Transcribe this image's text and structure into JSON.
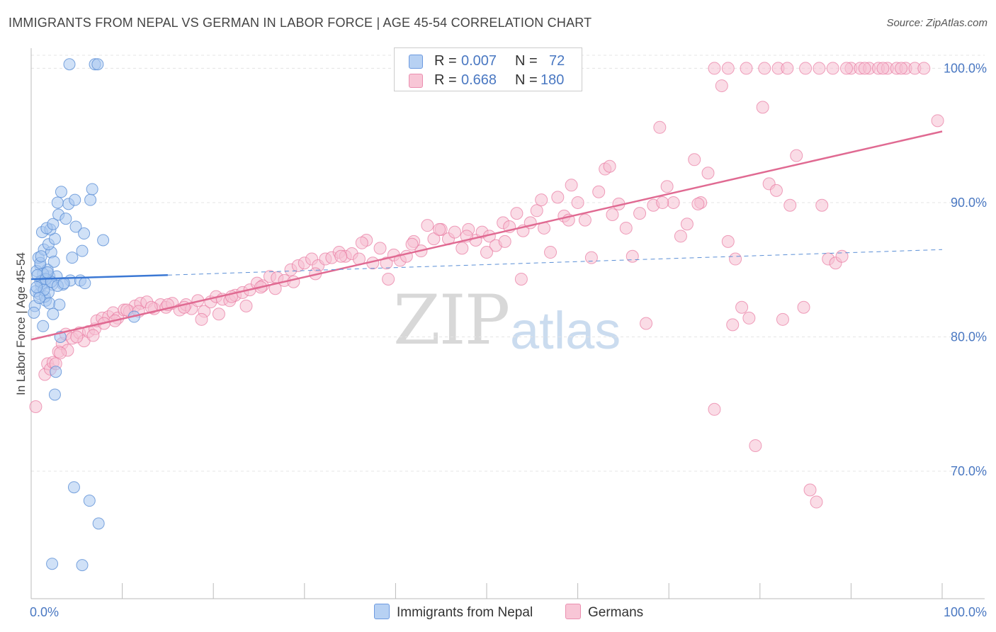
{
  "title": "IMMIGRANTS FROM NEPAL VS GERMAN IN LABOR FORCE | AGE 45-54 CORRELATION CHART",
  "source": "Source: ZipAtlas.com",
  "watermark": {
    "zip": "ZIP",
    "atlas": "atlas"
  },
  "legend": {
    "rows": [
      {
        "r_label": "R =",
        "r_value": "0.007",
        "n_label": "N =",
        "n_value": "72"
      },
      {
        "r_label": "R =",
        "r_value": "0.668",
        "n_label": "N =",
        "n_value": "180"
      }
    ]
  },
  "bottom_legend": {
    "nepal": "Immigrants from Nepal",
    "germans": "Germans"
  },
  "colors": {
    "nepal": "#5b8fd6",
    "nepal_fill": "#a9c8f0",
    "germans": "#e8789f",
    "germans_fill": "#f6bfd1",
    "tick": "#4a78c2"
  },
  "chart_data": {
    "type": "scatter",
    "title": "IMMIGRANTS FROM NEPAL VS GERMAN IN LABOR FORCE | AGE 45-54 CORRELATION CHART",
    "xlabel": "",
    "ylabel": "In Labor Force | Age 45-54",
    "xlim": [
      0,
      100
    ],
    "ylim": [
      60.5,
      101.5
    ],
    "x_tick_labels": [
      "0.0%",
      "100.0%"
    ],
    "y_ticks": [
      70,
      80,
      90,
      100
    ],
    "y_tick_labels": [
      "70.0%",
      "80.0%",
      "90.0%",
      "100.0%"
    ],
    "grid": true,
    "legend_placement": "top-center",
    "series": [
      {
        "name": "Immigrants from Nepal",
        "R": 0.007,
        "N": 72,
        "trend": {
          "x": [
            0,
            15
          ],
          "y": [
            84.3,
            84.6
          ],
          "dashed_to": [
            100,
            86.5
          ]
        },
        "points": [
          [
            4.2,
            100.3
          ],
          [
            7.0,
            100.3
          ],
          [
            7.3,
            100.3
          ],
          [
            1.2,
            84.2
          ],
          [
            1.5,
            84.0
          ],
          [
            2.0,
            84.5
          ],
          [
            1.0,
            85.3
          ],
          [
            1.8,
            85.0
          ],
          [
            0.9,
            83.2
          ],
          [
            2.3,
            83.9
          ],
          [
            1.1,
            83.8
          ],
          [
            1.6,
            82.7
          ],
          [
            1.3,
            84.7
          ],
          [
            0.6,
            84.9
          ],
          [
            0.8,
            85.9
          ],
          [
            1.4,
            86.5
          ],
          [
            2.2,
            86.3
          ],
          [
            1.9,
            86.9
          ],
          [
            2.6,
            87.3
          ],
          [
            1.2,
            87.8
          ],
          [
            2.1,
            88.0
          ],
          [
            1.7,
            88.1
          ],
          [
            2.4,
            88.4
          ],
          [
            3.0,
            89.1
          ],
          [
            4.1,
            89.9
          ],
          [
            2.9,
            90.0
          ],
          [
            4.8,
            90.2
          ],
          [
            6.5,
            90.2
          ],
          [
            3.3,
            90.8
          ],
          [
            6.7,
            91.0
          ],
          [
            3.8,
            88.8
          ],
          [
            4.9,
            88.2
          ],
          [
            5.8,
            87.7
          ],
          [
            7.9,
            87.2
          ],
          [
            5.6,
            86.4
          ],
          [
            4.5,
            85.9
          ],
          [
            1.0,
            85.5
          ],
          [
            2.5,
            85.6
          ],
          [
            4.3,
            84.2
          ],
          [
            5.4,
            84.2
          ],
          [
            5.9,
            84.0
          ],
          [
            3.5,
            83.9
          ],
          [
            2.8,
            84.5
          ],
          [
            1.5,
            83.0
          ],
          [
            1.9,
            83.3
          ],
          [
            0.5,
            83.4
          ],
          [
            2.0,
            82.5
          ],
          [
            3.1,
            82.4
          ],
          [
            0.4,
            82.3
          ],
          [
            0.3,
            81.8
          ],
          [
            2.4,
            81.7
          ],
          [
            1.3,
            80.8
          ],
          [
            11.3,
            81.5
          ],
          [
            3.2,
            80.0
          ],
          [
            2.7,
            77.4
          ],
          [
            2.6,
            75.7
          ],
          [
            4.7,
            68.8
          ],
          [
            6.4,
            67.8
          ],
          [
            7.4,
            66.1
          ],
          [
            2.3,
            63.1
          ],
          [
            5.6,
            63.0
          ],
          [
            1.0,
            84.1
          ],
          [
            0.7,
            84.6
          ],
          [
            1.6,
            84.3
          ],
          [
            2.2,
            84.1
          ],
          [
            1.4,
            83.5
          ],
          [
            0.9,
            82.9
          ],
          [
            1.8,
            84.8
          ],
          [
            2.9,
            83.8
          ],
          [
            3.6,
            84.0
          ],
          [
            1.1,
            86.0
          ],
          [
            0.6,
            83.7
          ]
        ]
      },
      {
        "name": "Germans",
        "R": 0.668,
        "N": 180,
        "trend": {
          "x": [
            0,
            100
          ],
          "y": [
            79.8,
            95.3
          ]
        },
        "points": [
          [
            0.5,
            74.8
          ],
          [
            1.5,
            77.2
          ],
          [
            1.8,
            78.0
          ],
          [
            2.1,
            77.6
          ],
          [
            2.4,
            78.1
          ],
          [
            3.0,
            78.9
          ],
          [
            3.4,
            79.5
          ],
          [
            3.8,
            80.2
          ],
          [
            4.5,
            79.9
          ],
          [
            5.3,
            80.3
          ],
          [
            5.8,
            79.7
          ],
          [
            6.3,
            80.4
          ],
          [
            7.0,
            80.6
          ],
          [
            7.2,
            81.2
          ],
          [
            7.8,
            81.4
          ],
          [
            8.5,
            81.5
          ],
          [
            9.0,
            81.8
          ],
          [
            9.5,
            81.4
          ],
          [
            10.2,
            82.0
          ],
          [
            10.8,
            81.9
          ],
          [
            11.4,
            82.3
          ],
          [
            12.0,
            82.5
          ],
          [
            12.7,
            82.6
          ],
          [
            13.5,
            82.1
          ],
          [
            14.2,
            82.4
          ],
          [
            14.8,
            82.2
          ],
          [
            15.5,
            82.5
          ],
          [
            16.3,
            82.0
          ],
          [
            17.0,
            82.4
          ],
          [
            17.6,
            82.1
          ],
          [
            18.3,
            82.7
          ],
          [
            19.0,
            81.9
          ],
          [
            19.7,
            82.6
          ],
          [
            20.3,
            83.0
          ],
          [
            21.0,
            82.8
          ],
          [
            21.8,
            82.7
          ],
          [
            22.4,
            83.1
          ],
          [
            23.2,
            83.3
          ],
          [
            24.0,
            83.5
          ],
          [
            24.8,
            84.0
          ],
          [
            25.4,
            83.8
          ],
          [
            26.2,
            84.5
          ],
          [
            27.0,
            84.4
          ],
          [
            27.8,
            84.2
          ],
          [
            28.5,
            85.0
          ],
          [
            29.3,
            85.3
          ],
          [
            30.0,
            85.5
          ],
          [
            30.8,
            85.8
          ],
          [
            31.5,
            85.3
          ],
          [
            32.3,
            85.8
          ],
          [
            33.0,
            85.9
          ],
          [
            33.8,
            86.3
          ],
          [
            34.5,
            86.0
          ],
          [
            35.2,
            86.2
          ],
          [
            36.0,
            85.8
          ],
          [
            36.8,
            87.2
          ],
          [
            37.5,
            85.5
          ],
          [
            38.3,
            86.6
          ],
          [
            39.0,
            85.5
          ],
          [
            39.8,
            86.1
          ],
          [
            40.5,
            85.7
          ],
          [
            41.2,
            86.0
          ],
          [
            42.0,
            87.1
          ],
          [
            42.8,
            86.4
          ],
          [
            43.5,
            88.3
          ],
          [
            44.2,
            87.3
          ],
          [
            45.0,
            88.0
          ],
          [
            45.8,
            87.3
          ],
          [
            46.5,
            87.8
          ],
          [
            47.3,
            86.6
          ],
          [
            48.0,
            88.0
          ],
          [
            48.8,
            87.2
          ],
          [
            49.5,
            87.8
          ],
          [
            50.3,
            87.5
          ],
          [
            51.0,
            86.8
          ],
          [
            51.8,
            88.5
          ],
          [
            52.5,
            88.2
          ],
          [
            53.3,
            89.2
          ],
          [
            54.0,
            87.9
          ],
          [
            54.8,
            88.5
          ],
          [
            55.5,
            89.4
          ],
          [
            56.3,
            88.1
          ],
          [
            57.0,
            86.3
          ],
          [
            57.8,
            90.4
          ],
          [
            58.5,
            89.0
          ],
          [
            59.3,
            91.3
          ],
          [
            60.0,
            90.0
          ],
          [
            60.8,
            88.7
          ],
          [
            61.5,
            85.9
          ],
          [
            62.3,
            90.8
          ],
          [
            63.0,
            92.5
          ],
          [
            63.8,
            89.1
          ],
          [
            64.5,
            89.9
          ],
          [
            65.3,
            88.1
          ],
          [
            66.0,
            86.0
          ],
          [
            66.8,
            89.2
          ],
          [
            67.5,
            81.0
          ],
          [
            68.3,
            89.8
          ],
          [
            69.0,
            95.6
          ],
          [
            69.8,
            91.2
          ],
          [
            70.5,
            90.0
          ],
          [
            71.3,
            87.5
          ],
          [
            72.0,
            88.4
          ],
          [
            72.8,
            93.2
          ],
          [
            73.5,
            90.0
          ],
          [
            74.3,
            92.2
          ],
          [
            75.0,
            74.6
          ],
          [
            75.8,
            98.7
          ],
          [
            76.5,
            87.1
          ],
          [
            77.3,
            85.8
          ],
          [
            78.0,
            82.2
          ],
          [
            78.8,
            81.4
          ],
          [
            79.5,
            71.9
          ],
          [
            80.3,
            97.1
          ],
          [
            81.0,
            91.4
          ],
          [
            81.8,
            90.9
          ],
          [
            82.5,
            81.3
          ],
          [
            83.3,
            89.8
          ],
          [
            84.0,
            93.5
          ],
          [
            84.8,
            82.2
          ],
          [
            85.5,
            68.6
          ],
          [
            86.2,
            67.7
          ],
          [
            86.8,
            89.8
          ],
          [
            87.5,
            85.8
          ],
          [
            88.3,
            85.5
          ],
          [
            89.0,
            86.0
          ],
          [
            90.0,
            100.0
          ],
          [
            91.0,
            100.0
          ],
          [
            92.0,
            100.0
          ],
          [
            93.0,
            100.0
          ],
          [
            94.0,
            100.0
          ],
          [
            95.0,
            100.0
          ],
          [
            96.0,
            100.0
          ],
          [
            97.0,
            100.0
          ],
          [
            98.0,
            100.0
          ],
          [
            99.5,
            96.1
          ],
          [
            75.0,
            100.0
          ],
          [
            76.5,
            100.0
          ],
          [
            78.5,
            100.0
          ],
          [
            80.5,
            100.0
          ],
          [
            82.0,
            100.0
          ],
          [
            83.0,
            100.0
          ],
          [
            85.0,
            100.0
          ],
          [
            86.5,
            100.0
          ],
          [
            88.0,
            100.0
          ],
          [
            89.5,
            100.0
          ],
          [
            91.5,
            100.0
          ],
          [
            93.5,
            100.0
          ],
          [
            95.5,
            100.0
          ],
          [
            63.5,
            92.7
          ],
          [
            59.0,
            88.7
          ],
          [
            56.0,
            90.2
          ],
          [
            53.8,
            84.3
          ],
          [
            52.0,
            87.1
          ],
          [
            50.0,
            86.3
          ],
          [
            47.8,
            87.5
          ],
          [
            44.8,
            88.0
          ],
          [
            41.8,
            86.9
          ],
          [
            39.2,
            84.3
          ],
          [
            36.3,
            87.0
          ],
          [
            34.0,
            86.0
          ],
          [
            31.2,
            84.7
          ],
          [
            28.8,
            84.1
          ],
          [
            26.8,
            83.6
          ],
          [
            25.2,
            83.7
          ],
          [
            23.6,
            82.3
          ],
          [
            22.0,
            83.0
          ],
          [
            20.6,
            81.7
          ],
          [
            18.7,
            81.3
          ],
          [
            16.8,
            82.2
          ],
          [
            15.0,
            82.4
          ],
          [
            13.2,
            82.2
          ],
          [
            11.8,
            81.9
          ],
          [
            10.5,
            82.0
          ],
          [
            9.2,
            81.2
          ],
          [
            8.0,
            81.0
          ],
          [
            6.8,
            80.1
          ],
          [
            5.0,
            80.0
          ],
          [
            4.0,
            79.0
          ],
          [
            3.2,
            78.8
          ],
          [
            2.7,
            78.0
          ],
          [
            69.3,
            90.0
          ],
          [
            73.2,
            89.9
          ],
          [
            77.0,
            80.9
          ]
        ]
      }
    ]
  }
}
